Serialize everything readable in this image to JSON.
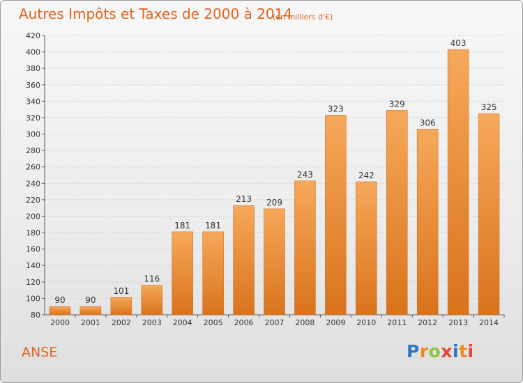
{
  "header": {
    "title": "Autres Impôts et Taxes de 2000 à 2014",
    "subtitle": "(en milliers d'€)"
  },
  "footer": {
    "place": "ANSE",
    "logo": "Proxiti"
  },
  "colors": {
    "bar_light": "#f6a85a",
    "bar_dark": "#d9731c",
    "text_accent": "#e0641f"
  },
  "chart_data": {
    "type": "bar",
    "title": "Autres Impôts et Taxes de 2000 à 2014",
    "subtitle": "(en milliers d'€)",
    "categories": [
      "2000",
      "2001",
      "2002",
      "2003",
      "2004",
      "2005",
      "2006",
      "2007",
      "2008",
      "2009",
      "2010",
      "2011",
      "2012",
      "2013",
      "2014"
    ],
    "values": [
      90,
      90,
      101,
      116,
      181,
      181,
      213,
      209,
      243,
      323,
      242,
      329,
      306,
      403,
      325
    ],
    "ylim": [
      80,
      420
    ],
    "yticks": [
      80,
      100,
      120,
      140,
      160,
      180,
      200,
      220,
      240,
      260,
      280,
      300,
      320,
      340,
      360,
      380,
      400,
      420
    ],
    "grid": true,
    "show_data_labels": true
  }
}
